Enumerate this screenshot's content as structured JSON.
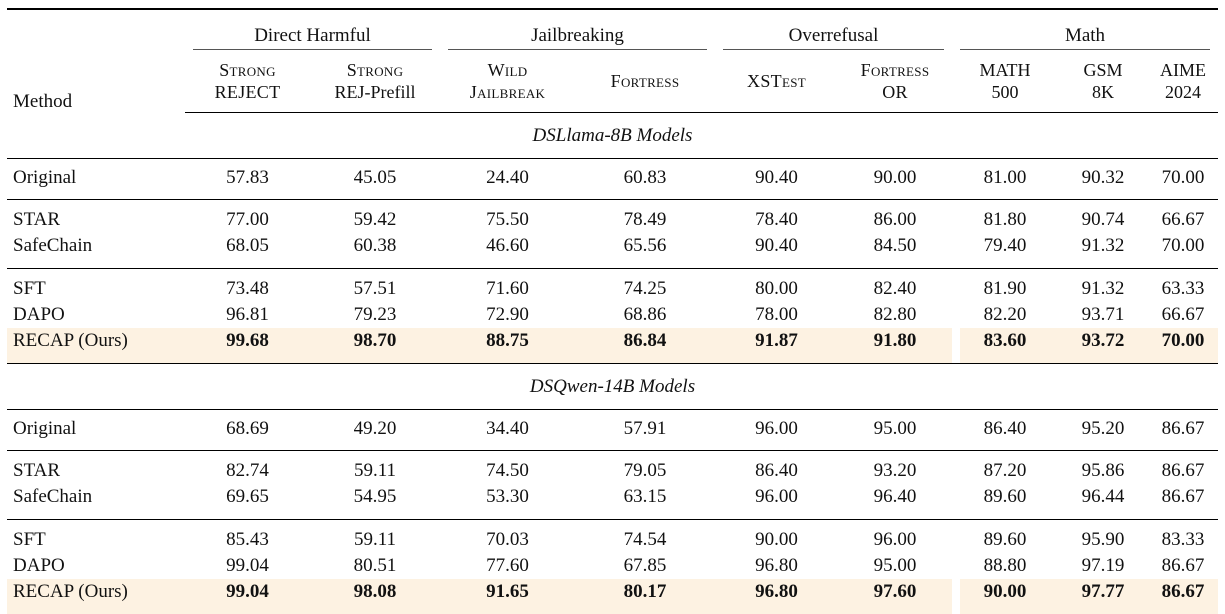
{
  "colors": {
    "highlight": "#FDF2E2",
    "rule_dark": "#000000",
    "rule_light": "#555555",
    "text": "#111111"
  },
  "header": {
    "method": "Method",
    "groups": [
      {
        "label": "Direct Harmful"
      },
      {
        "label": "Jailbreaking"
      },
      {
        "label": "Overrefusal"
      },
      {
        "label": "Math"
      }
    ],
    "columns": [
      {
        "lines": [
          "Strong",
          "REJECT"
        ]
      },
      {
        "lines": [
          "Strong",
          "REJ-Prefill"
        ]
      },
      {
        "lines": [
          "Wild",
          "Jailbreak"
        ]
      },
      {
        "lines": [
          "Fortress"
        ]
      },
      {
        "lines": [
          "XSTest"
        ]
      },
      {
        "lines": [
          "Fortress",
          "OR"
        ]
      },
      {
        "lines": [
          "MATH",
          "500"
        ]
      },
      {
        "lines": [
          "GSM",
          "8K"
        ]
      },
      {
        "lines": [
          "AIME",
          "2024"
        ]
      }
    ]
  },
  "sections": [
    {
      "title": "DSLlama-8B Models",
      "row_groups": [
        [
          {
            "method": "Original",
            "values": [
              "57.83",
              "45.05",
              "24.40",
              "60.83",
              "90.40",
              "90.00",
              "81.00",
              "90.32",
              "70.00"
            ]
          }
        ],
        [
          {
            "method": "STAR",
            "values": [
              "77.00",
              "59.42",
              "75.50",
              "78.49",
              "78.40",
              "86.00",
              "81.80",
              "90.74",
              "66.67"
            ]
          },
          {
            "method": "SafeChain",
            "values": [
              "68.05",
              "60.38",
              "46.60",
              "65.56",
              "90.40",
              "84.50",
              "79.40",
              "91.32",
              "70.00"
            ]
          }
        ],
        [
          {
            "method": "SFT",
            "values": [
              "73.48",
              "57.51",
              "71.60",
              "74.25",
              "80.00",
              "82.40",
              "81.90",
              "91.32",
              "63.33"
            ]
          },
          {
            "method": "DAPO",
            "values": [
              "96.81",
              "79.23",
              "72.90",
              "68.86",
              "78.00",
              "82.80",
              "82.20",
              "93.71",
              "66.67"
            ]
          },
          {
            "method": "RECAP (Ours)",
            "highlight": true,
            "values": [
              "99.68",
              "98.70",
              "88.75",
              "86.84",
              "91.87",
              "91.80",
              "83.60",
              "93.72",
              "70.00"
            ]
          }
        ]
      ]
    },
    {
      "title": "DSQwen-14B Models",
      "row_groups": [
        [
          {
            "method": "Original",
            "values": [
              "68.69",
              "49.20",
              "34.40",
              "57.91",
              "96.00",
              "95.00",
              "86.40",
              "95.20",
              "86.67"
            ]
          }
        ],
        [
          {
            "method": "STAR",
            "values": [
              "82.74",
              "59.11",
              "74.50",
              "79.05",
              "86.40",
              "93.20",
              "87.20",
              "95.86",
              "86.67"
            ]
          },
          {
            "method": "SafeChain",
            "values": [
              "69.65",
              "54.95",
              "53.30",
              "63.15",
              "96.00",
              "96.40",
              "89.60",
              "96.44",
              "86.67"
            ]
          }
        ],
        [
          {
            "method": "SFT",
            "values": [
              "85.43",
              "59.11",
              "70.03",
              "74.54",
              "90.00",
              "96.00",
              "89.60",
              "95.90",
              "83.33"
            ]
          },
          {
            "method": "DAPO",
            "values": [
              "99.04",
              "80.51",
              "77.60",
              "67.85",
              "96.80",
              "95.00",
              "88.80",
              "97.19",
              "86.67"
            ]
          },
          {
            "method": "RECAP (Ours)",
            "highlight": true,
            "values": [
              "99.04",
              "98.08",
              "91.65",
              "80.17",
              "96.80",
              "97.60",
              "90.00",
              "97.77",
              "86.67"
            ]
          }
        ]
      ]
    }
  ]
}
